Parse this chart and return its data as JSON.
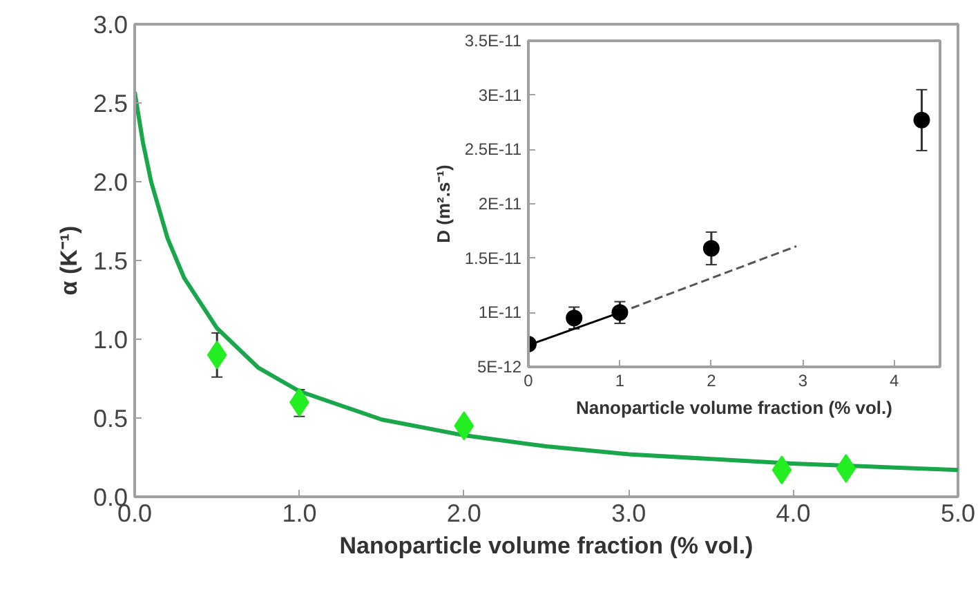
{
  "chart_data": [
    {
      "type": "scatter",
      "xlabel": "Nanoparticle volume fraction (% vol.)",
      "ylabel": "α (K⁻¹)",
      "xlim": [
        0,
        5
      ],
      "ylim": [
        0,
        3
      ],
      "xticks": [
        {
          "value": 0,
          "label": "0.0"
        },
        {
          "value": 1,
          "label": "1.0"
        },
        {
          "value": 2,
          "label": "2.0"
        },
        {
          "value": 3,
          "label": "3.0"
        },
        {
          "value": 4,
          "label": "4.0"
        },
        {
          "value": 5,
          "label": "5.0"
        }
      ],
      "yticks": [
        {
          "value": 0,
          "label": "0.0"
        },
        {
          "value": 0.5,
          "label": "0.5"
        },
        {
          "value": 1,
          "label": "1.0"
        },
        {
          "value": 1.5,
          "label": "1.5"
        },
        {
          "value": 2,
          "label": "2.0"
        },
        {
          "value": 2.5,
          "label": "2.5"
        },
        {
          "value": 3,
          "label": "3.0"
        }
      ],
      "grid": false,
      "series": [
        {
          "type": "line",
          "color": "#1aa64a",
          "line_style": "solid",
          "x": [
            0,
            0.05,
            0.1,
            0.2,
            0.3,
            0.5,
            0.75,
            1,
            1.5,
            2,
            2.5,
            3,
            4,
            5
          ],
          "values": [
            2.57,
            2.25,
            2.0,
            1.64,
            1.39,
            1.07,
            0.82,
            0.67,
            0.49,
            0.39,
            0.32,
            0.27,
            0.21,
            0.17
          ]
        },
        {
          "color": "#22ee22",
          "marker": "diamond",
          "x": [
            0.5,
            1.0,
            2.0,
            3.93,
            4.32
          ],
          "values": [
            0.9,
            0.6,
            0.45,
            0.17,
            0.18
          ],
          "errors": [
            [
              0.76,
              1.04
            ],
            [
              0.51,
              0.68
            ],
            null,
            null,
            null
          ]
        }
      ]
    },
    {
      "type": "scatter",
      "xlabel": "Nanoparticle volume fraction (% vol.)",
      "ylabel": "D (m².s⁻¹)",
      "xlim": [
        0,
        4.5
      ],
      "ylim": [
        5e-12,
        3.5e-11
      ],
      "xticks": [
        0,
        1,
        2,
        3,
        4
      ],
      "yticks": [
        {
          "value": 5e-12,
          "label": "5E-12"
        },
        {
          "value": 1e-11,
          "label": "1E-11"
        },
        {
          "value": 1.5e-11,
          "label": "1.5E-11"
        },
        {
          "value": 2e-11,
          "label": "2E-11"
        },
        {
          "value": 2.5e-11,
          "label": "2.5E-11"
        },
        {
          "value": 3e-11,
          "label": "3E-11"
        },
        {
          "value": 3.5e-11,
          "label": "3.5E-11"
        }
      ],
      "grid": false,
      "series": [
        {
          "type": "line",
          "color": "#000000",
          "line_style": "solid",
          "x": [
            0,
            1
          ],
          "values": [
            7e-12,
            1e-11
          ]
        },
        {
          "type": "line",
          "color": "#555555",
          "line_style": "dashed",
          "x": [
            1,
            2.93
          ],
          "values": [
            1e-11,
            1.61e-11
          ]
        },
        {
          "color": "#000000",
          "marker": "circle",
          "x": [
            0,
            0.5,
            1,
            2,
            4.3
          ],
          "values": [
            7.1e-12,
            9.5e-12,
            1e-11,
            1.59e-11,
            2.77e-11
          ],
          "errors": [
            5e-13,
            1e-12,
            1e-12,
            1.5e-12,
            2.8e-12
          ]
        }
      ]
    }
  ]
}
